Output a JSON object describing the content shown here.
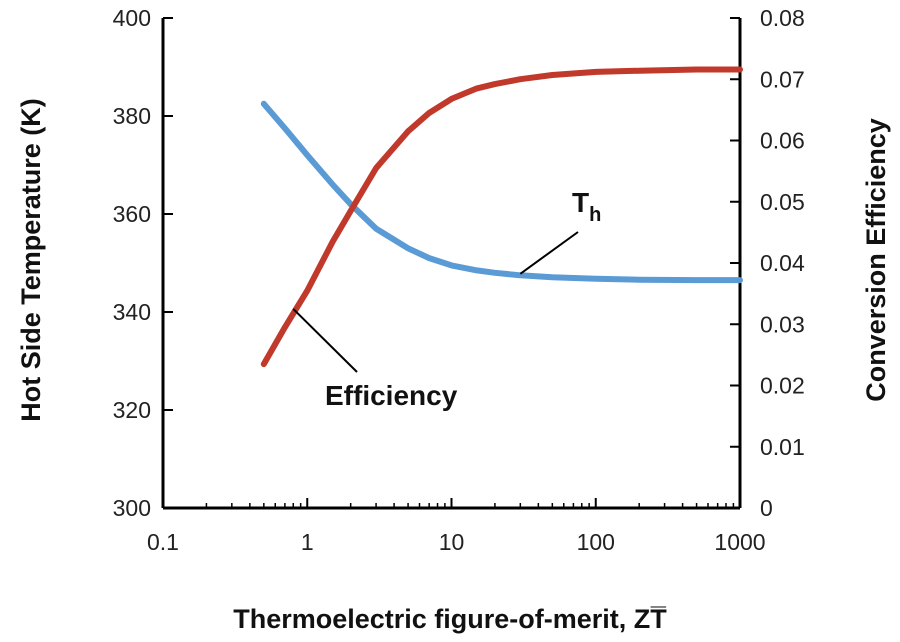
{
  "chart_data": {
    "type": "line",
    "xlabel": "Thermoelectric figure-of-merit, ZT̅",
    "ylabel_left": "Hot Side Temperature (K)",
    "ylabel_right": "Conversion Efficiency",
    "x_scale": "log",
    "xlim": [
      0.1,
      1000
    ],
    "x_ticks": [
      "0.1",
      "1",
      "10",
      "100",
      "1000"
    ],
    "ylim_left": [
      300,
      400
    ],
    "y_ticks_left": [
      "300",
      "320",
      "340",
      "360",
      "380",
      "400"
    ],
    "ylim_right": [
      0,
      0.08
    ],
    "y_ticks_right": [
      "0",
      "0.01",
      "0.02",
      "0.03",
      "0.04",
      "0.05",
      "0.06",
      "0.07",
      "0.08"
    ],
    "grid": false,
    "legend": "none",
    "series": [
      {
        "name": "Th",
        "axis": "left",
        "color": "#5b9bd5",
        "x": [
          0.5,
          0.7,
          1,
          1.5,
          2,
          3,
          5,
          7,
          10,
          15,
          20,
          30,
          50,
          100,
          200,
          500,
          1000
        ],
        "y": [
          382.5,
          377.5,
          372,
          366,
          362,
          357,
          353,
          351,
          349.5,
          348.5,
          348,
          347.5,
          347.1,
          346.8,
          346.6,
          346.5,
          346.5
        ]
      },
      {
        "name": "Efficiency",
        "axis": "right",
        "color": "#c0392b",
        "x": [
          0.5,
          0.7,
          1,
          1.5,
          2,
          3,
          5,
          7,
          10,
          15,
          20,
          30,
          50,
          100,
          200,
          500,
          1000
        ],
        "y": [
          0.0235,
          0.0295,
          0.0355,
          0.0435,
          0.0485,
          0.0555,
          0.0615,
          0.0645,
          0.0668,
          0.0685,
          0.0692,
          0.07,
          0.0707,
          0.0712,
          0.0714,
          0.0716,
          0.0716
        ]
      }
    ],
    "annotations": [
      {
        "text": "Efficiency",
        "series": "Efficiency"
      },
      {
        "text": "T",
        "subscript": "h",
        "series": "Th"
      }
    ]
  }
}
